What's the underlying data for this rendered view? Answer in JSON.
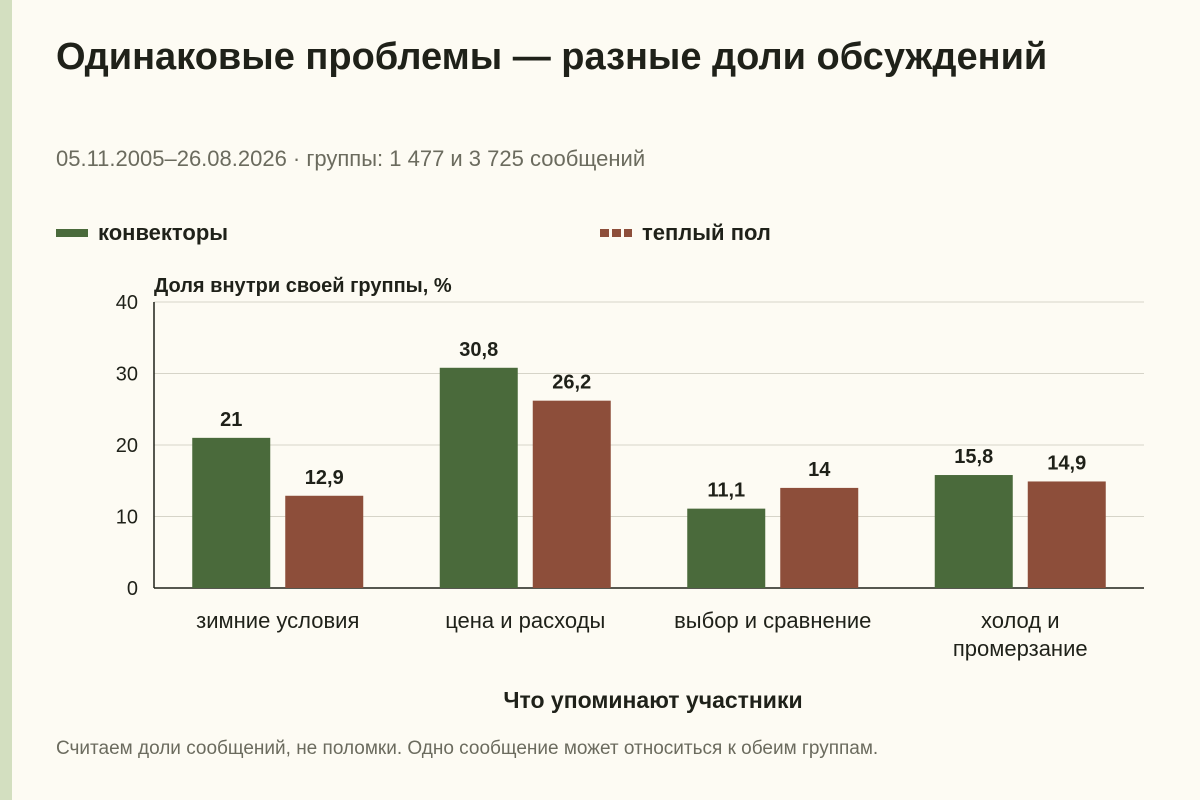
{
  "title": "Одинаковые проблемы — разные доли обсуждений",
  "subtitle": "05.11.2005–26.08.2026 · группы: 1 477 и 3 725 сообщений",
  "footnote": "Считаем доли сообщений, не поломки. Одно сообщение может относиться к обеим группам.",
  "colors": {
    "green": "#4a6a3b",
    "brown": "#8d4e3a",
    "grid": "#d6d4c8"
  },
  "chart_data": {
    "type": "bar",
    "categories": [
      [
        "зимние условия"
      ],
      [
        "цена и расходы"
      ],
      [
        "выбор и сравнение"
      ],
      [
        "холод и",
        "промерзание"
      ]
    ],
    "series": [
      {
        "name": "конвекторы",
        "values": [
          21,
          30.8,
          11.1,
          15.8
        ],
        "value_labels": [
          "21",
          "30,8",
          "11,1",
          "15,8"
        ]
      },
      {
        "name": "теплый пол",
        "values": [
          12.9,
          26.2,
          14,
          14.9
        ],
        "value_labels": [
          "12,9",
          "26,2",
          "14",
          "14,9"
        ]
      }
    ],
    "ylabel": "Доля внутри своей группы, %",
    "xlabel": "Что упоминают участники",
    "ylim": [
      0,
      40
    ],
    "yticks": [
      0,
      10,
      20,
      30,
      40
    ],
    "grid": true,
    "legend": "top-left"
  }
}
